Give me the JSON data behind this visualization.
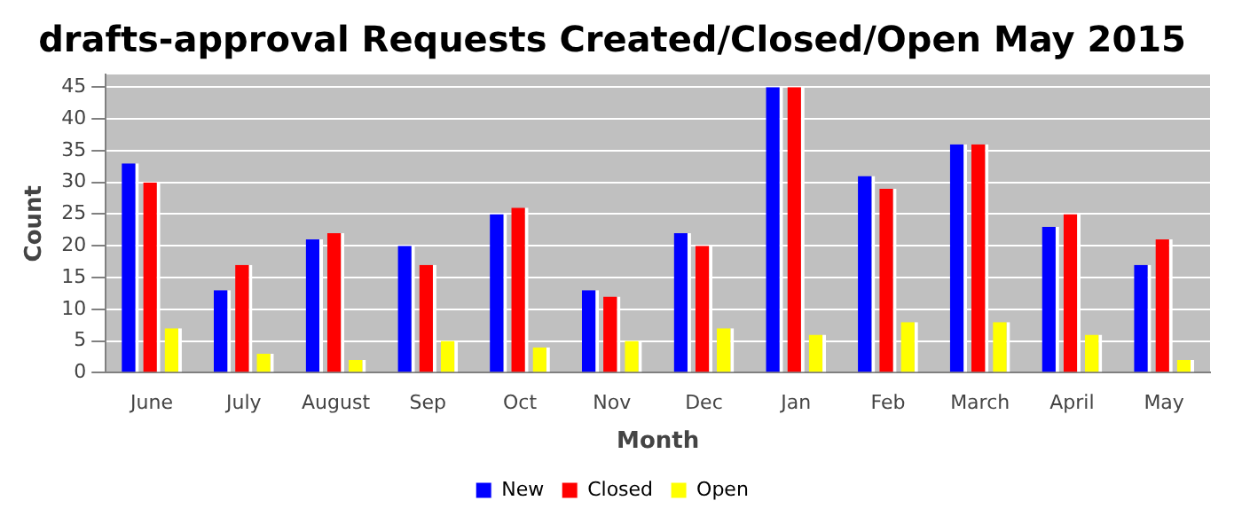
{
  "chart_data": {
    "type": "bar",
    "title": "drafts-approval Requests Created/Closed/Open May 2015",
    "xlabel": "Month",
    "ylabel": "Count",
    "categories": [
      "June",
      "July",
      "August",
      "Sep",
      "Oct",
      "Nov",
      "Dec",
      "Jan",
      "Feb",
      "March",
      "April",
      "May"
    ],
    "series": [
      {
        "name": "New",
        "color": "#0000ff",
        "values": [
          33,
          13,
          21,
          20,
          25,
          13,
          22,
          45,
          31,
          36,
          23,
          17
        ]
      },
      {
        "name": "Closed",
        "color": "#ff0000",
        "values": [
          30,
          17,
          22,
          17,
          26,
          12,
          20,
          45,
          29,
          36,
          25,
          21
        ]
      },
      {
        "name": "Open",
        "color": "#ffff00",
        "values": [
          7,
          3,
          2,
          5,
          4,
          5,
          7,
          6,
          8,
          8,
          6,
          2
        ]
      }
    ],
    "ylim": [
      0,
      47
    ],
    "yticks": [
      0,
      5,
      10,
      15,
      20,
      25,
      30,
      35,
      40,
      45
    ],
    "grid": "y",
    "legend": "bottom"
  }
}
